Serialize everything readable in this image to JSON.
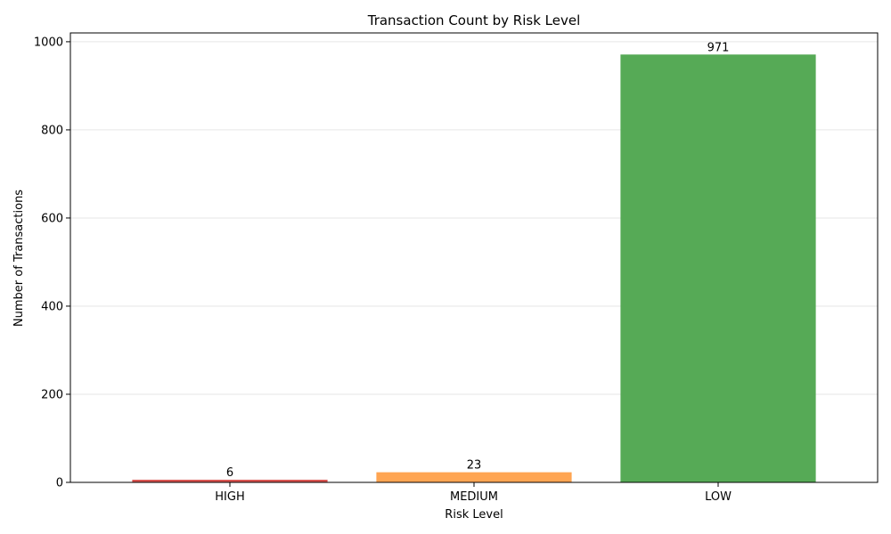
{
  "chart_data": {
    "type": "bar",
    "title": "Transaction Count by Risk Level",
    "xlabel": "Risk Level",
    "ylabel": "Number of Transactions",
    "categories": [
      "HIGH",
      "MEDIUM",
      "LOW"
    ],
    "values": [
      6,
      23,
      971
    ],
    "colors": [
      "#d9534f",
      "#ffa552",
      "#56aa56"
    ],
    "data_labels": [
      "6",
      "23",
      "971"
    ],
    "ylim": [
      0,
      1020
    ],
    "yticks": [
      0,
      200,
      400,
      600,
      800,
      1000
    ],
    "grid": "y-axis",
    "legend": "none"
  }
}
